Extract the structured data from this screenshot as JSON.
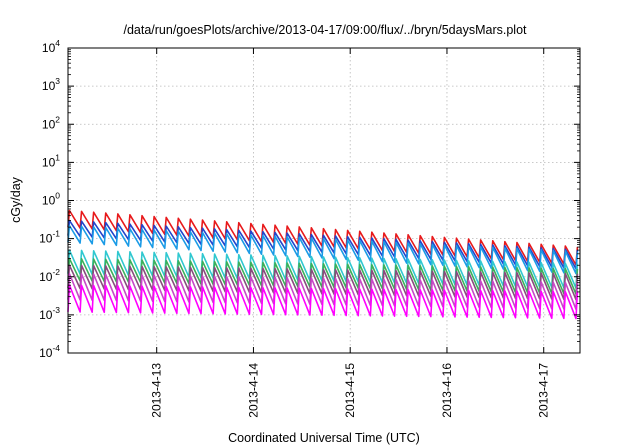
{
  "chart_data": {
    "type": "line",
    "title": "/data/run/goesPlots/archive/2013-04-17/09:00/flux/../bryn/5daysMars.plot",
    "xlabel": "Coordinated Universal Time (UTC)",
    "ylabel": "cGy/day",
    "yscale": "log",
    "ylim": [
      "1e-4",
      "1e4"
    ],
    "xlim": [
      "2013-04-12T02:00",
      "2013-04-17T09:00"
    ],
    "y_ticks": [
      {
        "base": "10",
        "exp": "-4"
      },
      {
        "base": "10",
        "exp": "-3"
      },
      {
        "base": "10",
        "exp": "-2"
      },
      {
        "base": "10",
        "exp": "-1"
      },
      {
        "base": "10",
        "exp": "0"
      },
      {
        "base": "10",
        "exp": "1"
      },
      {
        "base": "10",
        "exp": "2"
      },
      {
        "base": "10",
        "exp": "3"
      },
      {
        "base": "10",
        "exp": "4"
      }
    ],
    "x_ticks": [
      "2013-4-13",
      "2013-4-14",
      "2013-4-15",
      "2013-4-16",
      "2013-4-17"
    ],
    "grid": true,
    "legend": "none",
    "sawtooth_period_hours": 3,
    "series": [
      {
        "color": "#e8191b",
        "peak_start": 0.55,
        "peak_end": 0.06,
        "trough_start": 0.2,
        "trough_end": 0.02
      },
      {
        "color": "#2244cc",
        "peak_start": 0.3,
        "peak_end": 0.05,
        "trough_start": 0.12,
        "trough_end": 0.016
      },
      {
        "color": "#1a9be6",
        "peak_start": 0.22,
        "peak_end": 0.045,
        "trough_start": 0.08,
        "trough_end": 0.012
      },
      {
        "color": "#30c8d0",
        "peak_start": 0.05,
        "peak_end": 0.022,
        "trough_start": 0.012,
        "trough_end": 0.005
      },
      {
        "color": "#3cb05a",
        "peak_start": 0.03,
        "peak_end": 0.016,
        "trough_start": 0.008,
        "trough_end": 0.0035
      },
      {
        "color": "#8a4a7e",
        "peak_start": 0.02,
        "peak_end": 0.012,
        "trough_start": 0.005,
        "trough_end": 0.0025
      },
      {
        "color": "#c848c8",
        "peak_start": 0.012,
        "peak_end": 0.007,
        "trough_start": 0.0025,
        "trough_end": 0.0014
      },
      {
        "color": "#ff00ff",
        "peak_start": 0.006,
        "peak_end": 0.004,
        "trough_start": 0.0012,
        "trough_end": 0.0008
      }
    ]
  }
}
